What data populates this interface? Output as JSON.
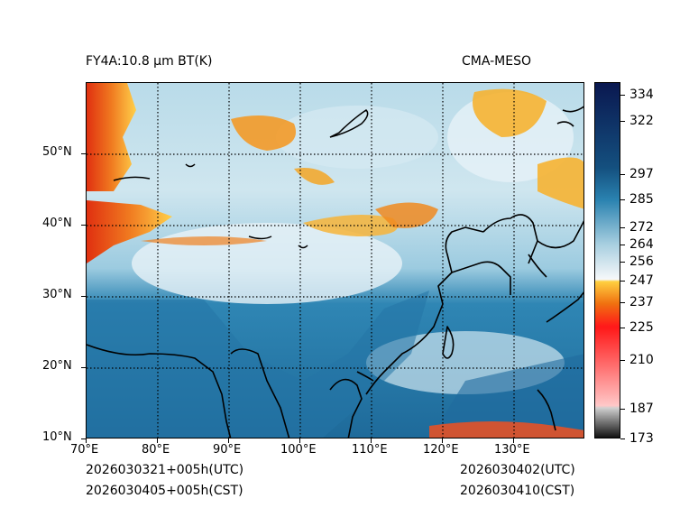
{
  "header": {
    "left_title": "FY4A:10.8 µm BT(K)",
    "right_title": "CMA-MESO"
  },
  "footer": {
    "init_utc": "2026030321+005h(UTC)",
    "init_cst": "2026030405+005h(CST)",
    "valid_utc": "2026030402(UTC)",
    "valid_cst": "2026030410(CST)"
  },
  "map": {
    "lon_range": [
      70,
      140
    ],
    "lat_range": [
      10,
      60
    ],
    "lon_ticks": [
      {
        "value": 70,
        "label": "70°E"
      },
      {
        "value": 80,
        "label": "80°E"
      },
      {
        "value": 90,
        "label": "90°E"
      },
      {
        "value": 100,
        "label": "100°E"
      },
      {
        "value": 110,
        "label": "110°E"
      },
      {
        "value": 120,
        "label": "120°E"
      },
      {
        "value": 130,
        "label": "130°E"
      }
    ],
    "lat_ticks": [
      {
        "value": 10,
        "label": "10°N"
      },
      {
        "value": 20,
        "label": "20°N"
      },
      {
        "value": 30,
        "label": "30°N"
      },
      {
        "value": 40,
        "label": "40°N"
      },
      {
        "value": 50,
        "label": "50°N"
      }
    ]
  },
  "colorbar": {
    "range": [
      173,
      340
    ],
    "ticks": [
      173,
      187,
      210,
      225,
      237,
      247,
      256,
      264,
      272,
      285,
      297,
      322,
      334
    ],
    "colors": {
      "cold": "#111111",
      "gray": "#d0d0d0",
      "pink": "#ffc8c8",
      "red": "#ff1a1a",
      "orange": "#f07010",
      "yellow": "#ffd040",
      "white": "#f6f8fa",
      "light_blue": "#a8cfe0",
      "mid_blue": "#2a82b0",
      "dark_blue": "#14507f",
      "navy": "#0a1850"
    }
  }
}
